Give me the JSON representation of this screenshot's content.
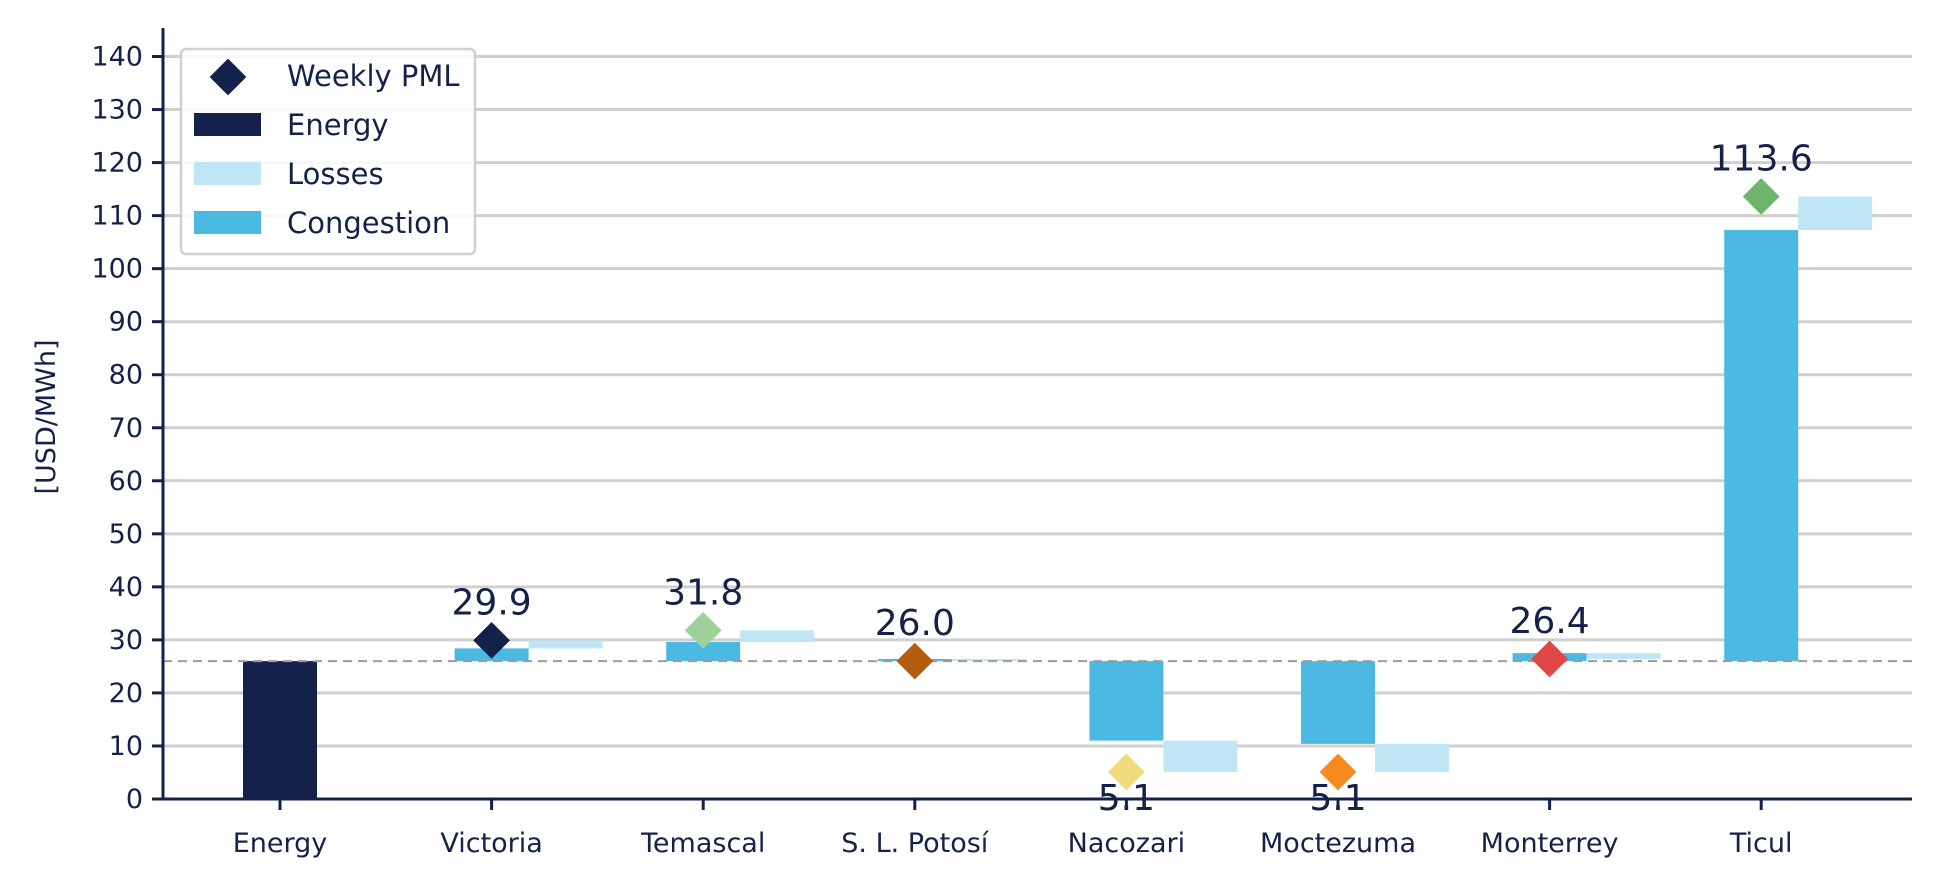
{
  "chart_data": {
    "type": "bar",
    "subtype": "waterfall-decomposition",
    "ylabel": "[USD/MWh]",
    "ylim": [
      0,
      145
    ],
    "yticks": [
      0,
      10,
      20,
      30,
      40,
      50,
      60,
      70,
      80,
      90,
      100,
      110,
      120,
      130,
      140
    ],
    "grid": true,
    "legend_position": "top-left",
    "baseline": 26.0,
    "legend": {
      "pml": "Weekly PML",
      "energy": "Energy",
      "losses": "Losses",
      "congestion": "Congestion"
    },
    "colors": {
      "energy": "#14214a",
      "losses": "#bfe6f5",
      "congestion": "#4cb9e3",
      "axis": "#14214a",
      "grid": "#cfcfcf",
      "baseline": "#9b9b9b"
    },
    "energy_bar": {
      "category": "Energy",
      "value": 26.0
    },
    "categories": [
      "Energy",
      "Victoria",
      "Temascal",
      "S. L. Potosí",
      "Nacozari",
      "Moctezuma",
      "Monterrey",
      "Ticul"
    ],
    "nodes": [
      {
        "name": "Victoria",
        "congestion": 2.4,
        "losses": 1.5,
        "pml": 29.9,
        "pml_label": "29.9",
        "marker_color": "#14214a"
      },
      {
        "name": "Temascal",
        "congestion": 3.6,
        "losses": 2.2,
        "pml": 31.8,
        "pml_label": "31.8",
        "marker_color": "#9ed29a"
      },
      {
        "name": "S. L. Potosí",
        "congestion": 0.4,
        "losses": -0.4,
        "pml": 26.0,
        "pml_label": "26.0",
        "marker_color": "#b35e0e"
      },
      {
        "name": "Nacozari",
        "congestion": -15.0,
        "losses": -5.9,
        "pml": 5.1,
        "pml_label": "5.1",
        "marker_color": "#f0da7a"
      },
      {
        "name": "Moctezuma",
        "congestion": -15.6,
        "losses": -5.3,
        "pml": 5.1,
        "pml_label": "5.1",
        "marker_color": "#f58a1f"
      },
      {
        "name": "Monterrey",
        "congestion": 1.5,
        "losses": -1.1,
        "pml": 26.4,
        "pml_label": "26.4",
        "marker_color": "#e04848"
      },
      {
        "name": "Ticul",
        "congestion": 81.3,
        "losses": 6.3,
        "pml": 113.6,
        "pml_label": "113.6",
        "marker_color": "#6eb46a"
      }
    ]
  }
}
